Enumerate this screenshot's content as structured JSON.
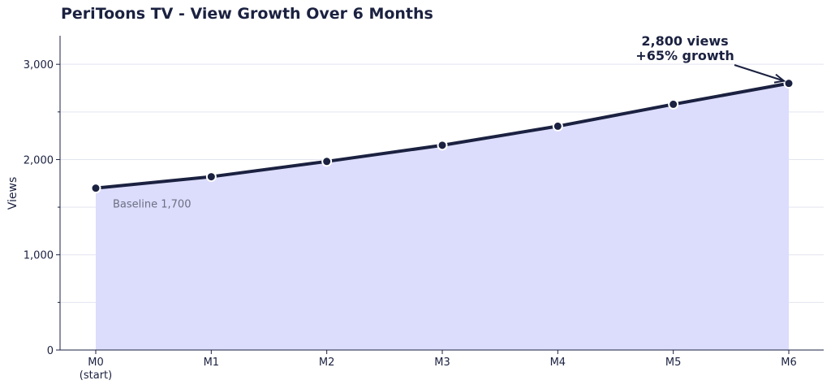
{
  "chart_data": {
    "type": "area",
    "title": "PeriToons TV - View Growth Over 6 Months",
    "xlabel": "",
    "ylabel": "Views",
    "categories": [
      "M0\n(start)",
      "M1",
      "M2",
      "M3",
      "M4",
      "M5",
      "M6"
    ],
    "series": [
      {
        "values": [
          1700,
          1820,
          1980,
          2150,
          2350,
          2580,
          2800
        ]
      }
    ],
    "ylim": [
      0,
      3300
    ],
    "yticks": [
      0,
      1000,
      2000,
      3000
    ],
    "ytick_labels": [
      "0",
      "1,000",
      "2,000",
      "3,000"
    ],
    "grid": true,
    "annotations": {
      "peak": {
        "line1": "2,800 views",
        "line2": "+65% growth"
      },
      "baseline": "Baseline 1,700"
    },
    "colors": {
      "line": "#1b2140",
      "fill": "#dcdcfd",
      "grid": "#e3e5f0",
      "axis": "#1b2140"
    }
  }
}
